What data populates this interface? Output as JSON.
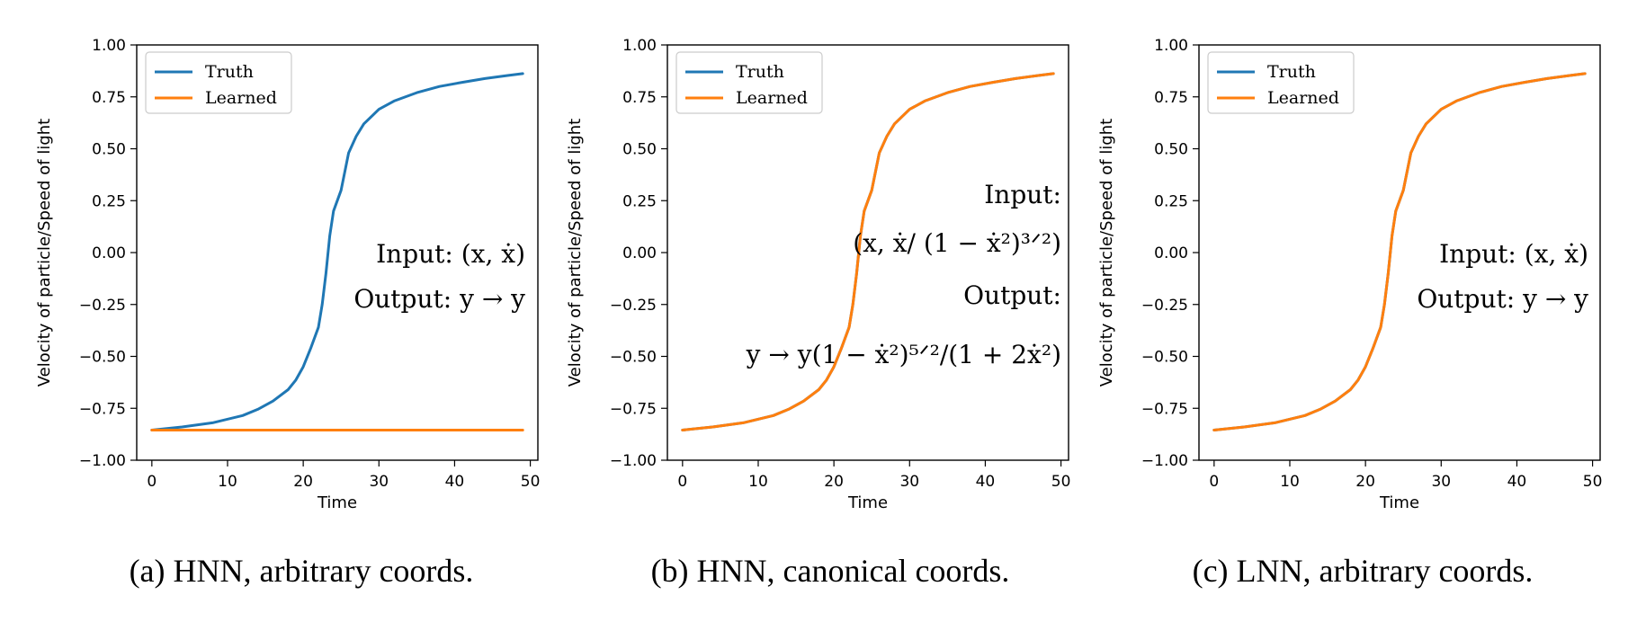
{
  "chart_data": [
    {
      "type": "line",
      "xlabel": "Time",
      "ylabel": "Velocity of particle/Speed of light",
      "xlim": [
        -2,
        51
      ],
      "ylim": [
        -1.0,
        1.0
      ],
      "xticks": [
        0,
        10,
        20,
        30,
        40,
        50
      ],
      "yticks": [
        1.0,
        0.75,
        0.5,
        0.25,
        0.0,
        -0.25,
        -0.5,
        -0.75,
        -1.0
      ],
      "xtick_labels": [
        "0",
        "10",
        "20",
        "30",
        "40",
        "50"
      ],
      "ytick_labels": [
        "1.00",
        "0.75",
        "0.50",
        "0.25",
        "0.00",
        "−0.25",
        "−0.50",
        "−0.75",
        "−1.00"
      ],
      "legend_placement": "upper-left",
      "annotation_lines": [
        "Input: (x, ẋ)",
        "Output: y → y"
      ],
      "caption": "(a) HNN, arbitrary coords.",
      "series": [
        {
          "name": "Truth",
          "color": "#1f77b4",
          "x": [
            0,
            4,
            8,
            12,
            14,
            16,
            18,
            19,
            20,
            21,
            22,
            22.5,
            23,
            23.5,
            24,
            25,
            26,
            27,
            28,
            30,
            32,
            35,
            38,
            41,
            44,
            47,
            49
          ],
          "y": [
            -0.855,
            -0.84,
            -0.82,
            -0.785,
            -0.755,
            -0.715,
            -0.66,
            -0.615,
            -0.55,
            -0.46,
            -0.36,
            -0.25,
            -0.1,
            0.08,
            0.2,
            0.3,
            0.48,
            0.56,
            0.62,
            0.69,
            0.73,
            0.77,
            0.8,
            0.82,
            0.838,
            0.853,
            0.862
          ]
        },
        {
          "name": "Learned",
          "color": "#ff7f0e",
          "x": [
            0,
            49
          ],
          "y": [
            -0.855,
            -0.855
          ]
        }
      ]
    },
    {
      "type": "line",
      "xlabel": "Time",
      "ylabel": "Velocity of particle/Speed of light",
      "xlim": [
        -2,
        51
      ],
      "ylim": [
        -1.0,
        1.0
      ],
      "xticks": [
        0,
        10,
        20,
        30,
        40,
        50
      ],
      "yticks": [
        1.0,
        0.75,
        0.5,
        0.25,
        0.0,
        -0.25,
        -0.5,
        -0.75,
        -1.0
      ],
      "xtick_labels": [
        "0",
        "10",
        "20",
        "30",
        "40",
        "50"
      ],
      "ytick_labels": [
        "1.00",
        "0.75",
        "0.50",
        "0.25",
        "0.00",
        "−0.25",
        "−0.50",
        "−0.75",
        "−1.00"
      ],
      "legend_placement": "upper-left",
      "annotation_lines": [
        "Input:",
        "(x, ẋ/ (1 − ẋ²)³ᐟ²)",
        "Output:",
        "y → y(1 − ẋ²)⁵ᐟ²/(1 + 2ẋ²)"
      ],
      "caption": "(b) HNN, canonical coords.",
      "series": [
        {
          "name": "Truth",
          "color": "#1f77b4",
          "x": [
            0,
            4,
            8,
            12,
            14,
            16,
            18,
            19,
            20,
            21,
            22,
            22.5,
            23,
            23.5,
            24,
            25,
            26,
            27,
            28,
            30,
            32,
            35,
            38,
            41,
            44,
            47,
            49
          ],
          "y": [
            -0.855,
            -0.84,
            -0.82,
            -0.785,
            -0.755,
            -0.715,
            -0.66,
            -0.615,
            -0.55,
            -0.46,
            -0.36,
            -0.25,
            -0.1,
            0.08,
            0.2,
            0.3,
            0.48,
            0.56,
            0.62,
            0.69,
            0.73,
            0.77,
            0.8,
            0.82,
            0.838,
            0.853,
            0.862
          ]
        },
        {
          "name": "Learned",
          "color": "#ff7f0e",
          "x": [
            0,
            4,
            8,
            12,
            14,
            16,
            18,
            19,
            20,
            21,
            22,
            22.5,
            23,
            23.5,
            24,
            25,
            26,
            27,
            28,
            30,
            32,
            35,
            38,
            41,
            44,
            47,
            49
          ],
          "y": [
            -0.855,
            -0.84,
            -0.82,
            -0.785,
            -0.755,
            -0.715,
            -0.66,
            -0.615,
            -0.55,
            -0.46,
            -0.36,
            -0.25,
            -0.1,
            0.08,
            0.2,
            0.3,
            0.48,
            0.56,
            0.62,
            0.69,
            0.73,
            0.77,
            0.8,
            0.82,
            0.838,
            0.853,
            0.862
          ]
        }
      ]
    },
    {
      "type": "line",
      "xlabel": "Time",
      "ylabel": "Velocity of particle/Speed of light",
      "xlim": [
        -2,
        51
      ],
      "ylim": [
        -1.0,
        1.0
      ],
      "xticks": [
        0,
        10,
        20,
        30,
        40,
        50
      ],
      "yticks": [
        1.0,
        0.75,
        0.5,
        0.25,
        0.0,
        -0.25,
        -0.5,
        -0.75,
        -1.0
      ],
      "xtick_labels": [
        "0",
        "10",
        "20",
        "30",
        "40",
        "50"
      ],
      "ytick_labels": [
        "1.00",
        "0.75",
        "0.50",
        "0.25",
        "0.00",
        "−0.25",
        "−0.50",
        "−0.75",
        "−1.00"
      ],
      "legend_placement": "upper-left",
      "annotation_lines": [
        "Input: (x, ẋ)",
        "Output: y → y"
      ],
      "caption": "(c) LNN, arbitrary coords.",
      "series": [
        {
          "name": "Truth",
          "color": "#1f77b4",
          "x": [
            0,
            4,
            8,
            12,
            14,
            16,
            18,
            19,
            20,
            21,
            22,
            22.5,
            23,
            23.5,
            24,
            25,
            26,
            27,
            28,
            30,
            32,
            35,
            38,
            41,
            44,
            47,
            49
          ],
          "y": [
            -0.855,
            -0.84,
            -0.82,
            -0.785,
            -0.755,
            -0.715,
            -0.66,
            -0.615,
            -0.55,
            -0.46,
            -0.36,
            -0.25,
            -0.1,
            0.08,
            0.2,
            0.3,
            0.48,
            0.56,
            0.62,
            0.69,
            0.73,
            0.77,
            0.8,
            0.82,
            0.838,
            0.853,
            0.862
          ]
        },
        {
          "name": "Learned",
          "color": "#ff7f0e",
          "x": [
            0,
            4,
            8,
            12,
            14,
            16,
            18,
            19,
            20,
            21,
            22,
            22.5,
            23,
            23.5,
            24,
            25,
            26,
            27,
            28,
            30,
            32,
            35,
            38,
            41,
            44,
            47,
            49
          ],
          "y": [
            -0.855,
            -0.84,
            -0.82,
            -0.785,
            -0.755,
            -0.715,
            -0.66,
            -0.615,
            -0.55,
            -0.46,
            -0.36,
            -0.25,
            -0.1,
            0.08,
            0.2,
            0.3,
            0.48,
            0.56,
            0.62,
            0.69,
            0.73,
            0.77,
            0.8,
            0.82,
            0.838,
            0.853,
            0.862
          ]
        }
      ]
    }
  ]
}
